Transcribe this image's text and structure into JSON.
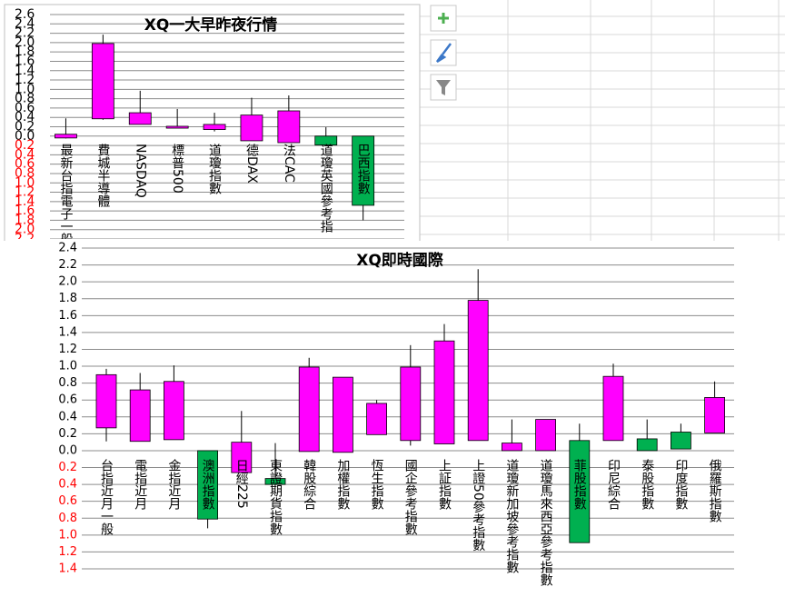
{
  "chart_data": [
    {
      "type": "candlestick",
      "title": "XQ一大早昨夜行情",
      "categories": [
        "最新台指電子一般",
        "費城半導體",
        "NASDAQ",
        "標普500",
        "道瓊指數",
        "德DAX",
        "法CAC",
        "道瓊英國參考指",
        "巴西指數"
      ],
      "open": [
        -0.04,
        0.37,
        0.25,
        0.17,
        0.14,
        -0.1,
        -0.14,
        0.0,
        0.0
      ],
      "high": [
        0.38,
        2.17,
        0.97,
        0.58,
        0.5,
        0.82,
        0.87,
        0.19,
        0.0
      ],
      "low": [
        -0.05,
        0.35,
        0.25,
        0.17,
        0.1,
        -0.1,
        -0.14,
        -0.19,
        -1.8
      ],
      "close": [
        0.04,
        1.98,
        0.5,
        0.21,
        0.25,
        0.45,
        0.54,
        -0.19,
        -1.48
      ],
      "up_color": "#ff00ff",
      "down_color": "#00b050",
      "negative_tick_color": "#ff0000",
      "ylim": [
        -2.2,
        2.6
      ],
      "yticks": [
        2.6,
        2.4,
        2.2,
        {
          "value": 2,
          "label": "2.0"
        },
        1.8,
        1.6,
        1.4,
        1.2,
        {
          "value": 1,
          "label": "1.0"
        },
        0.8,
        0.6,
        0.4,
        0.2,
        {
          "value": 0,
          "label": "0.0"
        },
        {
          "value": -0.2,
          "label": "0.2"
        },
        {
          "value": -0.4,
          "label": "0.4"
        },
        {
          "value": -0.6,
          "label": "0.6"
        },
        {
          "value": -0.8,
          "label": "0.8"
        },
        {
          "value": -1,
          "label": "1.0"
        },
        {
          "value": -1.2,
          "label": "1.2"
        },
        {
          "value": -1.4,
          "label": "1.4"
        },
        {
          "value": -1.6,
          "label": "1.6"
        },
        {
          "value": -1.8,
          "label": "1.8"
        },
        {
          "value": -2,
          "label": "2.0"
        },
        {
          "value": -2.2,
          "label": "2.2"
        }
      ],
      "grid": true
    },
    {
      "type": "candlestick",
      "title": "XQ即時國際",
      "categories": [
        "台指近月一般",
        "電指近月",
        "金指近月",
        "澳洲指數",
        "日經225",
        "東證期貨指數",
        "韓股綜合",
        "加權指數",
        "恆生指數",
        "國企參考指數",
        "上証指數",
        "上證50參考指數",
        "道瓊新加坡參考指數",
        "道瓊馬來西亞參考指數",
        "菲股指數",
        "印尼綜合",
        "泰股指數",
        "印度指數",
        "俄羅斯指數"
      ],
      "open": [
        0.27,
        0.11,
        0.13,
        0.0,
        -0.26,
        -0.33,
        -0.01,
        -0.02,
        0.19,
        0.12,
        0.08,
        0.12,
        0.0,
        0.0,
        0.12,
        0.12,
        0.14,
        0.22,
        0.21
      ],
      "high": [
        0.97,
        0.92,
        1.01,
        0.0,
        0.47,
        0.09,
        1.1,
        0.87,
        0.6,
        1.25,
        1.5,
        2.15,
        0.37,
        0.37,
        0.32,
        1.03,
        0.37,
        0.32,
        0.82
      ],
      "low": [
        0.11,
        0.11,
        0.13,
        -0.92,
        -0.26,
        -0.4,
        -0.01,
        -0.02,
        0.19,
        0.06,
        0.08,
        0.12,
        0.0,
        0.0,
        -1.09,
        0.12,
        0.0,
        0.02,
        0.21
      ],
      "close": [
        0.9,
        0.72,
        0.82,
        -0.81,
        0.1,
        -0.4,
        0.99,
        0.87,
        0.56,
        0.99,
        1.3,
        1.78,
        0.09,
        0.37,
        -1.09,
        0.88,
        0.0,
        0.02,
        0.63
      ],
      "up_color": "#ff00ff",
      "down_color": "#00b050",
      "negative_tick_color": "#ff0000",
      "ylim": [
        -1.4,
        2.4
      ],
      "yticks": [
        2.4,
        2.2,
        {
          "value": 2,
          "label": "2.0"
        },
        1.8,
        1.6,
        1.4,
        1.2,
        {
          "value": 1,
          "label": "1.0"
        },
        0.8,
        0.6,
        0.4,
        0.2,
        {
          "value": 0,
          "label": "0.0"
        },
        {
          "value": -0.2,
          "label": "0.2"
        },
        {
          "value": -0.4,
          "label": "0.4"
        },
        {
          "value": -0.6,
          "label": "0.6"
        },
        {
          "value": -0.8,
          "label": "0.8"
        },
        {
          "value": -1,
          "label": "1.0"
        },
        {
          "value": -1.2,
          "label": "1.2"
        },
        {
          "value": -1.4,
          "label": "1.4"
        }
      ],
      "grid": true
    }
  ]
}
